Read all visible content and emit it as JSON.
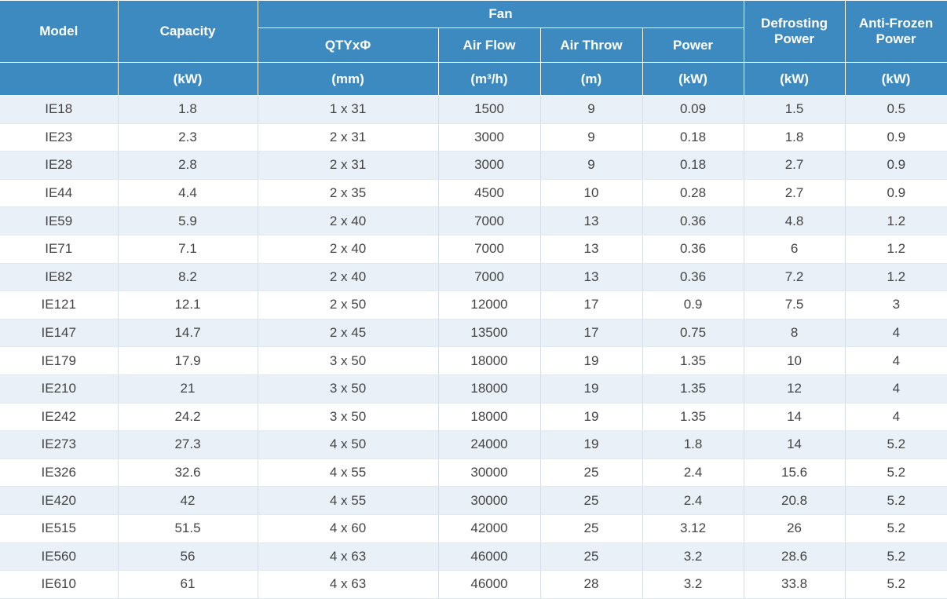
{
  "header": {
    "model": "Model",
    "capacity": "Capacity",
    "fan": "Fan",
    "fan_cols": [
      "QTYxΦ",
      "Air Flow",
      "Air Throw",
      "Power"
    ],
    "defrosting_line1": "Defrosting",
    "defrosting_line2": "Power",
    "antifrozen_line1": "Anti-Frozen",
    "antifrozen_line2": "Power",
    "units": [
      "(kW)",
      "(mm)",
      "(m³/h)",
      "(m)",
      "(kW)",
      "(kW)",
      "(kW)"
    ]
  },
  "colors": {
    "header_bg": "#3c8ac0",
    "stripe_bg": "#eaf0f7"
  },
  "rows": [
    [
      "IE18",
      "1.8",
      "1 x 31",
      "1500",
      "9",
      "0.09",
      "1.5",
      "0.5"
    ],
    [
      "IE23",
      "2.3",
      "2 x 31",
      "3000",
      "9",
      "0.18",
      "1.8",
      "0.9"
    ],
    [
      "IE28",
      "2.8",
      "2 x 31",
      "3000",
      "9",
      "0.18",
      "2.7",
      "0.9"
    ],
    [
      "IE44",
      "4.4",
      "2 x 35",
      "4500",
      "10",
      "0.28",
      "2.7",
      "0.9"
    ],
    [
      "IE59",
      "5.9",
      "2 x 40",
      "7000",
      "13",
      "0.36",
      "4.8",
      "1.2"
    ],
    [
      "IE71",
      "7.1",
      "2 x 40",
      "7000",
      "13",
      "0.36",
      "6",
      "1.2"
    ],
    [
      "IE82",
      "8.2",
      "2 x 40",
      "7000",
      "13",
      "0.36",
      "7.2",
      "1.2"
    ],
    [
      "IE121",
      "12.1",
      "2 x 50",
      "12000",
      "17",
      "0.9",
      "7.5",
      "3"
    ],
    [
      "IE147",
      "14.7",
      "2 x 45",
      "13500",
      "17",
      "0.75",
      "8",
      "4"
    ],
    [
      "IE179",
      "17.9",
      "3 x 50",
      "18000",
      "19",
      "1.35",
      "10",
      "4"
    ],
    [
      "IE210",
      "21",
      "3 x 50",
      "18000",
      "19",
      "1.35",
      "12",
      "4"
    ],
    [
      "IE242",
      "24.2",
      "3 x 50",
      "18000",
      "19",
      "1.35",
      "14",
      "4"
    ],
    [
      "IE273",
      "27.3",
      "4 x 50",
      "24000",
      "19",
      "1.8",
      "14",
      "5.2"
    ],
    [
      "IE326",
      "32.6",
      "4 x 55",
      "30000",
      "25",
      "2.4",
      "15.6",
      "5.2"
    ],
    [
      "IE420",
      "42",
      "4 x 55",
      "30000",
      "25",
      "2.4",
      "20.8",
      "5.2"
    ],
    [
      "IE515",
      "51.5",
      "4 x 60",
      "42000",
      "25",
      "3.12",
      "26",
      "5.2"
    ],
    [
      "IE560",
      "56",
      "4 x 63",
      "46000",
      "25",
      "3.2",
      "28.6",
      "5.2"
    ],
    [
      "IE610",
      "61",
      "4 x 63",
      "46000",
      "28",
      "3.2",
      "33.8",
      "5.2"
    ]
  ]
}
